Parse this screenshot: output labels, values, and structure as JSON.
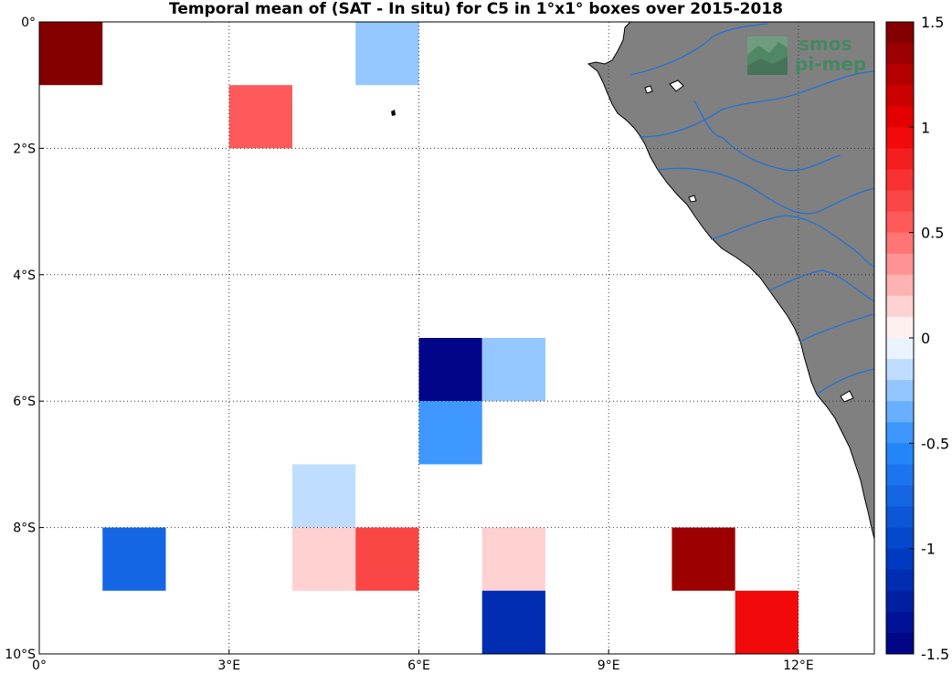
{
  "chart_data": {
    "type": "heatmap",
    "title": "Temporal mean of (SAT - In situ) for C5 in 1°x1° boxes over 2015-2018",
    "x_ticks": [
      "0°",
      "3°E",
      "6°E",
      "9°E",
      "12°E"
    ],
    "y_ticks": [
      "0°",
      "2°S",
      "4°S",
      "6°S",
      "8°S",
      "10°S"
    ],
    "xlim": [
      0,
      13.2
    ],
    "ylim": [
      -10,
      0
    ],
    "grid": true,
    "colorbar": {
      "min": -1.5,
      "max": 1.5,
      "step": 0.1,
      "tick_labels": [
        "1.5",
        "1",
        "0.5",
        "0",
        "-0.5",
        "-1",
        "-1.5"
      ],
      "tick_values": [
        1.5,
        1,
        0.5,
        0,
        -0.5,
        -1,
        -1.5
      ]
    },
    "cells": [
      {
        "lon": 0,
        "lat": 0,
        "value": 1.45
      },
      {
        "lon": 5,
        "lat": 0,
        "value": -0.25
      },
      {
        "lon": 3,
        "lat": -1,
        "value": 0.55
      },
      {
        "lon": 6,
        "lat": -5,
        "value": -1.45
      },
      {
        "lon": 7,
        "lat": -5,
        "value": -0.25
      },
      {
        "lon": 6,
        "lat": -6,
        "value": -0.45
      },
      {
        "lon": 4,
        "lat": -7,
        "value": -0.15
      },
      {
        "lon": 1,
        "lat": -8,
        "value": -0.75
      },
      {
        "lon": 4,
        "lat": -8,
        "value": 0.15
      },
      {
        "lon": 5,
        "lat": -8,
        "value": 0.65
      },
      {
        "lon": 7,
        "lat": -8,
        "value": 0.15
      },
      {
        "lon": 10,
        "lat": -8,
        "value": 1.35
      },
      {
        "lon": 7,
        "lat": -9,
        "value": -1.15
      },
      {
        "lon": 11,
        "lat": -9,
        "value": 0.95
      }
    ]
  },
  "logo": {
    "line1": "smos",
    "line2": "pi-mep"
  },
  "colors": {
    "land": "#808080",
    "river": "#1e6fd9",
    "coast": "#000000",
    "logo": "#2e8b57"
  }
}
